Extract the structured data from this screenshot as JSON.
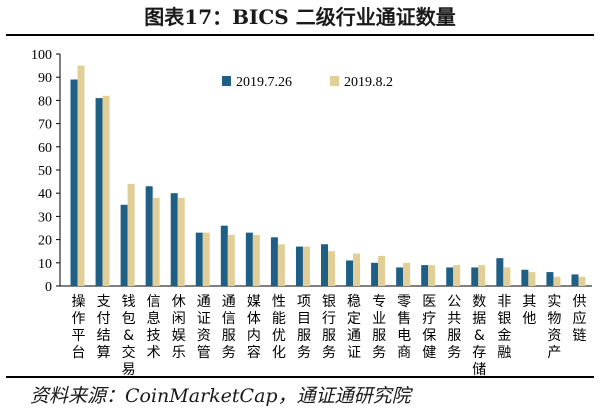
{
  "title": "图表17：BICS 二级行业通证数量",
  "source": "资料来源：CoinMarketCap，通证通研究院",
  "chart_data": {
    "type": "bar",
    "ylim": [
      0,
      100
    ],
    "yticks": [
      0,
      10,
      20,
      30,
      40,
      50,
      60,
      70,
      80,
      90,
      100
    ],
    "grid": false,
    "legend_position": "top-center",
    "categories": [
      "操作平台",
      "支付结算",
      "钱包&交易",
      "信息技术",
      "休闲娱乐",
      "通证资管",
      "通信服务",
      "媒体内容",
      "性能优化",
      "项目服务",
      "银行服务",
      "稳定通证",
      "专业服务",
      "零售电商",
      "医疗保健",
      "公共服务",
      "数据&存储",
      "非银金融",
      "其他",
      "实物资产",
      "供应链"
    ],
    "series": [
      {
        "name": "2019.7.26",
        "color": "#1f5f86",
        "values": [
          89,
          81,
          35,
          43,
          40,
          23,
          26,
          23,
          21,
          17,
          18,
          11,
          10,
          8,
          9,
          8,
          8,
          12,
          7,
          6,
          5
        ]
      },
      {
        "name": "2019.8.2",
        "color": "#e2cf98",
        "values": [
          95,
          82,
          44,
          38,
          38,
          23,
          22,
          22,
          18,
          17,
          15,
          14,
          13,
          10,
          9,
          9,
          9,
          8,
          6,
          4,
          4
        ]
      }
    ]
  }
}
